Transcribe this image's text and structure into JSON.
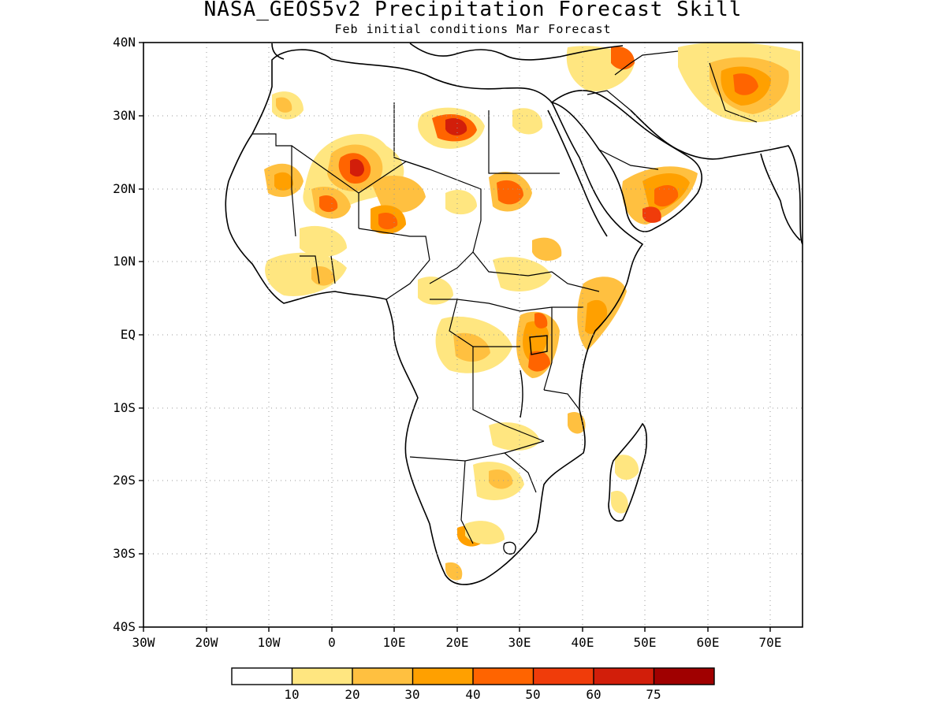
{
  "title": "NASA_GEOS5v2 Precipitation Forecast Skill",
  "subtitle": "Feb initial conditions  Mar Forecast",
  "map": {
    "lon_range": [
      -30,
      75
    ],
    "lat_range": [
      -40,
      40
    ],
    "lat_ticks": [
      "40N",
      "30N",
      "20N",
      "10N",
      "EQ",
      "10S",
      "20S",
      "30S",
      "40S"
    ],
    "lon_ticks": [
      "30W",
      "20W",
      "10W",
      "0",
      "10E",
      "20E",
      "30E",
      "40E",
      "50E",
      "60E",
      "70E"
    ],
    "grid": "dotted",
    "land_outline_color": "#000000"
  },
  "colorbar": {
    "labels": [
      "10",
      "20",
      "30",
      "40",
      "50",
      "60",
      "75"
    ],
    "colors": [
      "#ffffff",
      "#ffe680",
      "#ffc040",
      "#ffa000",
      "#ff6400",
      "#f03c0a",
      "#d21e0a",
      "#a00000"
    ]
  }
}
